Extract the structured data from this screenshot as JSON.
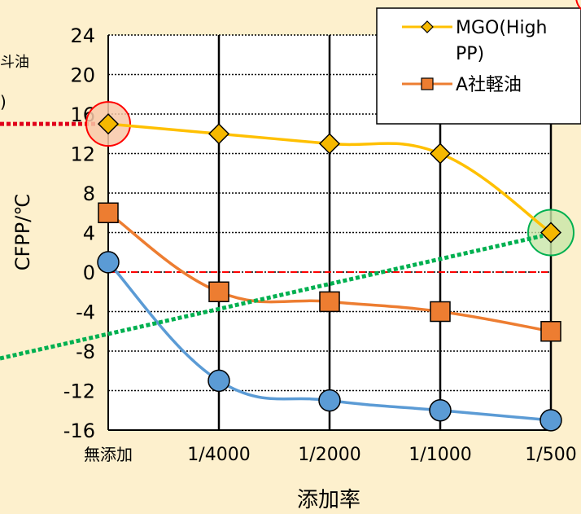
{
  "chart_data": {
    "type": "line",
    "categories": [
      "無添加",
      "1/4000",
      "1/2000",
      "1/1000",
      "1/500"
    ],
    "xlabel": "添加率",
    "ylabel": "CFPP/℃",
    "ylim": [
      -16,
      24
    ],
    "yticks": [
      24,
      20,
      16,
      12,
      8,
      4,
      0,
      -4,
      -8,
      -12,
      -16
    ],
    "grid": true,
    "legend_position": "top-right",
    "reference_line": 0,
    "series": [
      {
        "name": "MGO(High PP)",
        "name_lines": [
          "MGO(High",
          "PP)"
        ],
        "marker": "diamond",
        "color": "#ffc000",
        "marker_fill": "#f5b800",
        "values": [
          15,
          14,
          13,
          12,
          4
        ]
      },
      {
        "name": "A社軽油",
        "marker": "square",
        "color": "#ed7d31",
        "marker_fill": "#ed7d31",
        "values": [
          6,
          -2,
          -3,
          -4,
          -6
        ]
      },
      {
        "name": "",
        "marker": "circle",
        "color": "#5b9bd5",
        "marker_fill": "#5b9bd5",
        "values": [
          1,
          -11,
          -13,
          -14,
          -15
        ]
      }
    ],
    "cropped_text": [
      "斗油",
      ")"
    ]
  }
}
